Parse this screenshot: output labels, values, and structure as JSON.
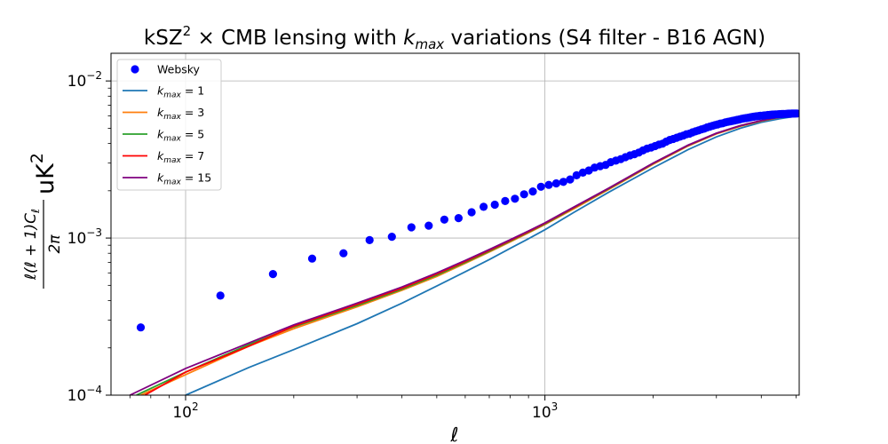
{
  "chart_data": {
    "type": "line",
    "title_parts": {
      "a": "kSZ",
      "a_sup": "2",
      "b": " × CMB lensing with ",
      "k_italic": "k",
      "k_sub": "max",
      "c": " variations (S4 filter - B16 AGN)"
    },
    "xlabel": "ℓ",
    "ylabel_parts": {
      "frac_num": "ℓ(ℓ + 1)C",
      "frac_num_sub": "ℓ",
      "frac_den": "2π",
      "unit": "uK",
      "unit_sup": "2"
    },
    "x_scale": "log",
    "y_scale": "log",
    "xlim": [
      62,
      5100
    ],
    "ylim": [
      0.0001,
      0.015
    ],
    "grid": true,
    "legend_position": "upper-left",
    "x_ticks": [
      {
        "value": 100,
        "base": "10",
        "exp": "2"
      },
      {
        "value": 1000,
        "base": "10",
        "exp": "3"
      }
    ],
    "y_ticks": [
      {
        "value": 0.0001,
        "base": "10",
        "exp": "−4"
      },
      {
        "value": 0.001,
        "base": "10",
        "exp": "−3"
      },
      {
        "value": 0.01,
        "base": "10",
        "exp": "−2"
      }
    ],
    "scatter": {
      "name": "Websky",
      "color": "#0000ff",
      "x": [
        75,
        125,
        175,
        225,
        275,
        325,
        375,
        425,
        475,
        525,
        575,
        625,
        675,
        725,
        775,
        825,
        875,
        925,
        975,
        1025,
        1075,
        1125,
        1175,
        1225,
        1275,
        1325,
        1375,
        1425,
        1475,
        1525,
        1575,
        1625,
        1675,
        1725,
        1775,
        1825,
        1875,
        1925,
        1975,
        2025,
        2075,
        2125,
        2175,
        2225,
        2275,
        2325,
        2375,
        2425,
        2475,
        2525,
        2575,
        2625,
        2675,
        2725,
        2775,
        2825,
        2875,
        2925,
        2975,
        3025,
        3075,
        3125,
        3175,
        3225,
        3275,
        3325,
        3375,
        3425,
        3475,
        3525,
        3575,
        3625,
        3675,
        3725,
        3775,
        3825,
        3875,
        3925,
        3975,
        4025,
        4075,
        4125,
        4175,
        4225,
        4275,
        4325,
        4375,
        4425,
        4475,
        4525,
        4575,
        4625,
        4675,
        4725,
        4775,
        4825,
        4875,
        4925,
        4975,
        5025
      ],
      "y": [
        0.00027,
        0.00043,
        0.00059,
        0.00074,
        0.0008,
        0.00097,
        0.00102,
        0.00117,
        0.0012,
        0.00131,
        0.00134,
        0.00146,
        0.00158,
        0.00163,
        0.00172,
        0.00178,
        0.0019,
        0.00198,
        0.00212,
        0.00218,
        0.00223,
        0.00228,
        0.00236,
        0.00251,
        0.00261,
        0.00269,
        0.00281,
        0.00287,
        0.00292,
        0.00304,
        0.00311,
        0.00318,
        0.00327,
        0.00336,
        0.00342,
        0.0035,
        0.00361,
        0.00371,
        0.00377,
        0.00385,
        0.00393,
        0.00399,
        0.00411,
        0.00421,
        0.00427,
        0.00435,
        0.00442,
        0.00449,
        0.00458,
        0.00462,
        0.00471,
        0.00478,
        0.00484,
        0.00492,
        0.00497,
        0.00506,
        0.00512,
        0.00518,
        0.00524,
        0.00529,
        0.00535,
        0.00538,
        0.00544,
        0.00549,
        0.00553,
        0.00557,
        0.00561,
        0.00565,
        0.00569,
        0.00573,
        0.00577,
        0.0058,
        0.00583,
        0.00587,
        0.0059,
        0.00592,
        0.00595,
        0.00598,
        0.006,
        0.00601,
        0.00603,
        0.00605,
        0.00607,
        0.00608,
        0.0061,
        0.00611,
        0.00612,
        0.00613,
        0.00614,
        0.00615,
        0.00616,
        0.00617,
        0.00617,
        0.00618,
        0.00619,
        0.00619,
        0.0062,
        0.0062,
        0.0062,
        0.00621
      ]
    },
    "series": [
      {
        "name": "= 1",
        "color": "#1f77b4",
        "x": [
          100,
          150,
          200,
          300,
          400,
          500,
          600,
          700,
          800,
          900,
          1000,
          1200,
          1500,
          2000,
          2500,
          3000,
          3500,
          4000,
          4500,
          5100
        ],
        "y": [
          0.0001,
          0.00015,
          0.000195,
          0.000285,
          0.000385,
          0.000495,
          0.00061,
          0.00073,
          0.00086,
          0.00099,
          0.00113,
          0.00145,
          0.00195,
          0.0028,
          0.00365,
          0.0044,
          0.005,
          0.00545,
          0.00575,
          0.006
        ]
      },
      {
        "name": "= 3",
        "color": "#ff7f0e",
        "x": [
          75,
          100,
          150,
          200,
          300,
          400,
          500,
          600,
          700,
          800,
          900,
          1000,
          1200,
          1500,
          2000,
          2500,
          3000,
          3500,
          4000,
          4500,
          5100
        ],
        "y": [
          0.0001,
          0.000135,
          0.000205,
          0.000265,
          0.000365,
          0.000465,
          0.00057,
          0.00069,
          0.000815,
          0.000945,
          0.00108,
          0.00122,
          0.00153,
          0.00203,
          0.00295,
          0.00385,
          0.0046,
          0.00515,
          0.00555,
          0.00585,
          0.0061
        ]
      },
      {
        "name": "= 5",
        "color": "#2ca02c",
        "x": [
          73,
          100,
          150,
          200,
          300,
          400,
          500,
          600,
          700,
          800,
          900,
          1000,
          1200,
          1500,
          2000,
          2500,
          3000,
          3500,
          4000,
          4500,
          5100
        ],
        "y": [
          0.0001,
          0.00014,
          0.00021,
          0.000272,
          0.000372,
          0.000472,
          0.00058,
          0.0007,
          0.000825,
          0.000955,
          0.00109,
          0.00123,
          0.00155,
          0.00205,
          0.00298,
          0.00388,
          0.00463,
          0.00518,
          0.00558,
          0.00588,
          0.00612
        ]
      },
      {
        "name": "= 7",
        "color": "#ff0000",
        "x": [
          77,
          100,
          150,
          200,
          300,
          400,
          500,
          600,
          700,
          800,
          900,
          1000,
          1200,
          1500,
          2000,
          2500,
          3000,
          3500,
          4000,
          4500,
          5100
        ],
        "y": [
          0.0001,
          0.00014,
          0.000205,
          0.000275,
          0.000378,
          0.00048,
          0.00059,
          0.00071,
          0.000835,
          0.000965,
          0.0011,
          0.00124,
          0.00156,
          0.00206,
          0.00299,
          0.00389,
          0.00464,
          0.00519,
          0.00559,
          0.00589,
          0.00613
        ]
      },
      {
        "name": "= 15",
        "color": "#800080",
        "x": [
          70,
          100,
          150,
          200,
          300,
          400,
          500,
          600,
          700,
          800,
          900,
          1000,
          1200,
          1500,
          2000,
          2500,
          3000,
          3500,
          4000,
          4500,
          5100
        ],
        "y": [
          0.0001,
          0.000148,
          0.000215,
          0.00028,
          0.000385,
          0.000488,
          0.0006,
          0.00072,
          0.000845,
          0.000975,
          0.00111,
          0.00125,
          0.00157,
          0.00207,
          0.003,
          0.0039,
          0.00465,
          0.0052,
          0.0056,
          0.0059,
          0.00614
        ]
      }
    ],
    "legend_k": {
      "italic": "k",
      "sub": "max"
    }
  }
}
